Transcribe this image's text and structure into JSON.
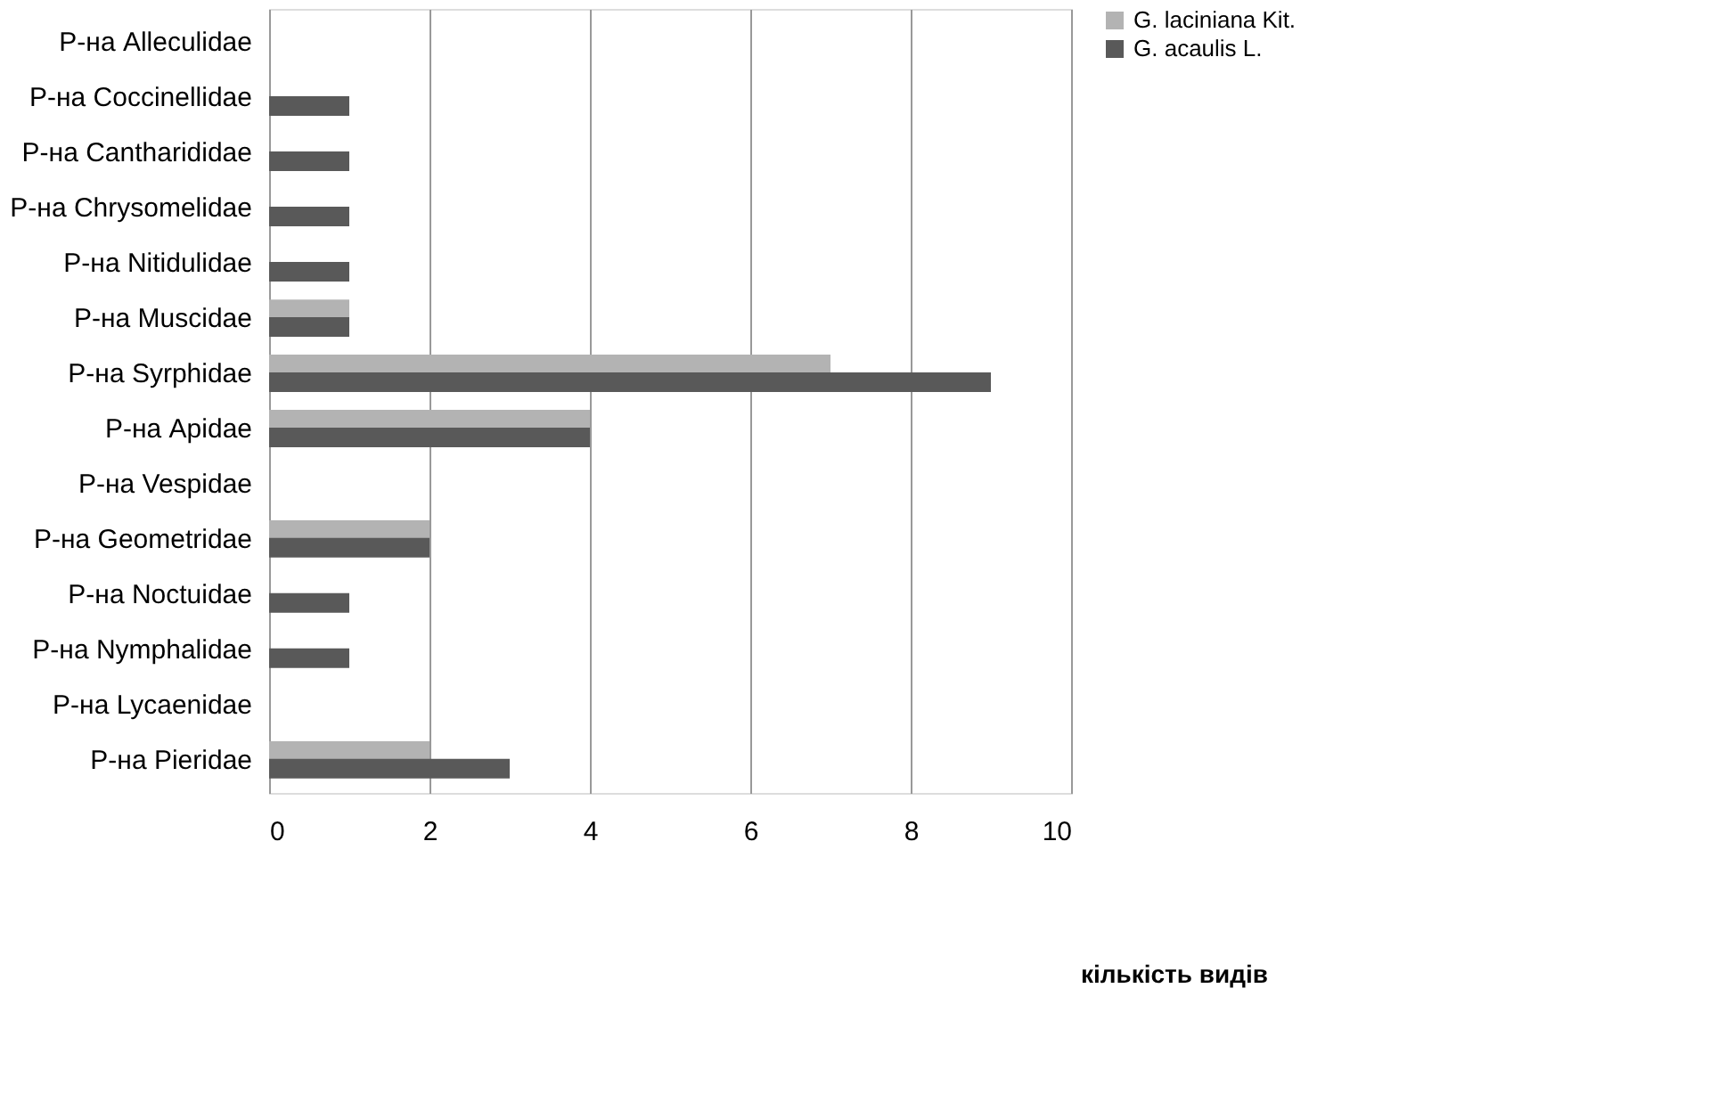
{
  "chart_data": {
    "type": "bar",
    "orientation": "horizontal",
    "xlabel": "кількість видів",
    "categories": [
      "Р-на Alleculidae",
      "Р-на Coccinellidae",
      "Р-на Cantharididae",
      "Р-на Chrysomelidae",
      "Р-на Nitidulidae",
      "Р-на Muscidae",
      "Р-на Syrphidae",
      "Р-на Apidae",
      "Р-на Vespidae",
      "Р-на Geometridae",
      "Р-на Noctuidae",
      "Р-на Nymphalidae",
      "Р-на Lycaenidae",
      "Р-на Pieridae"
    ],
    "series": [
      {
        "name": "G. laciniana Kit.",
        "color": "#b3b3b3",
        "values": [
          0,
          0,
          0,
          0,
          0,
          1,
          7,
          4,
          0,
          2,
          0,
          0,
          0,
          2
        ]
      },
      {
        "name": "G. acaulis L.",
        "color": "#595959",
        "values": [
          0,
          1,
          1,
          1,
          1,
          1,
          9,
          4,
          0,
          2,
          1,
          1,
          0,
          3
        ]
      }
    ],
    "xlim": [
      0,
      10
    ],
    "xticks": [
      0,
      2,
      4,
      6,
      8,
      10
    ],
    "grid": "x",
    "legend": "right"
  }
}
